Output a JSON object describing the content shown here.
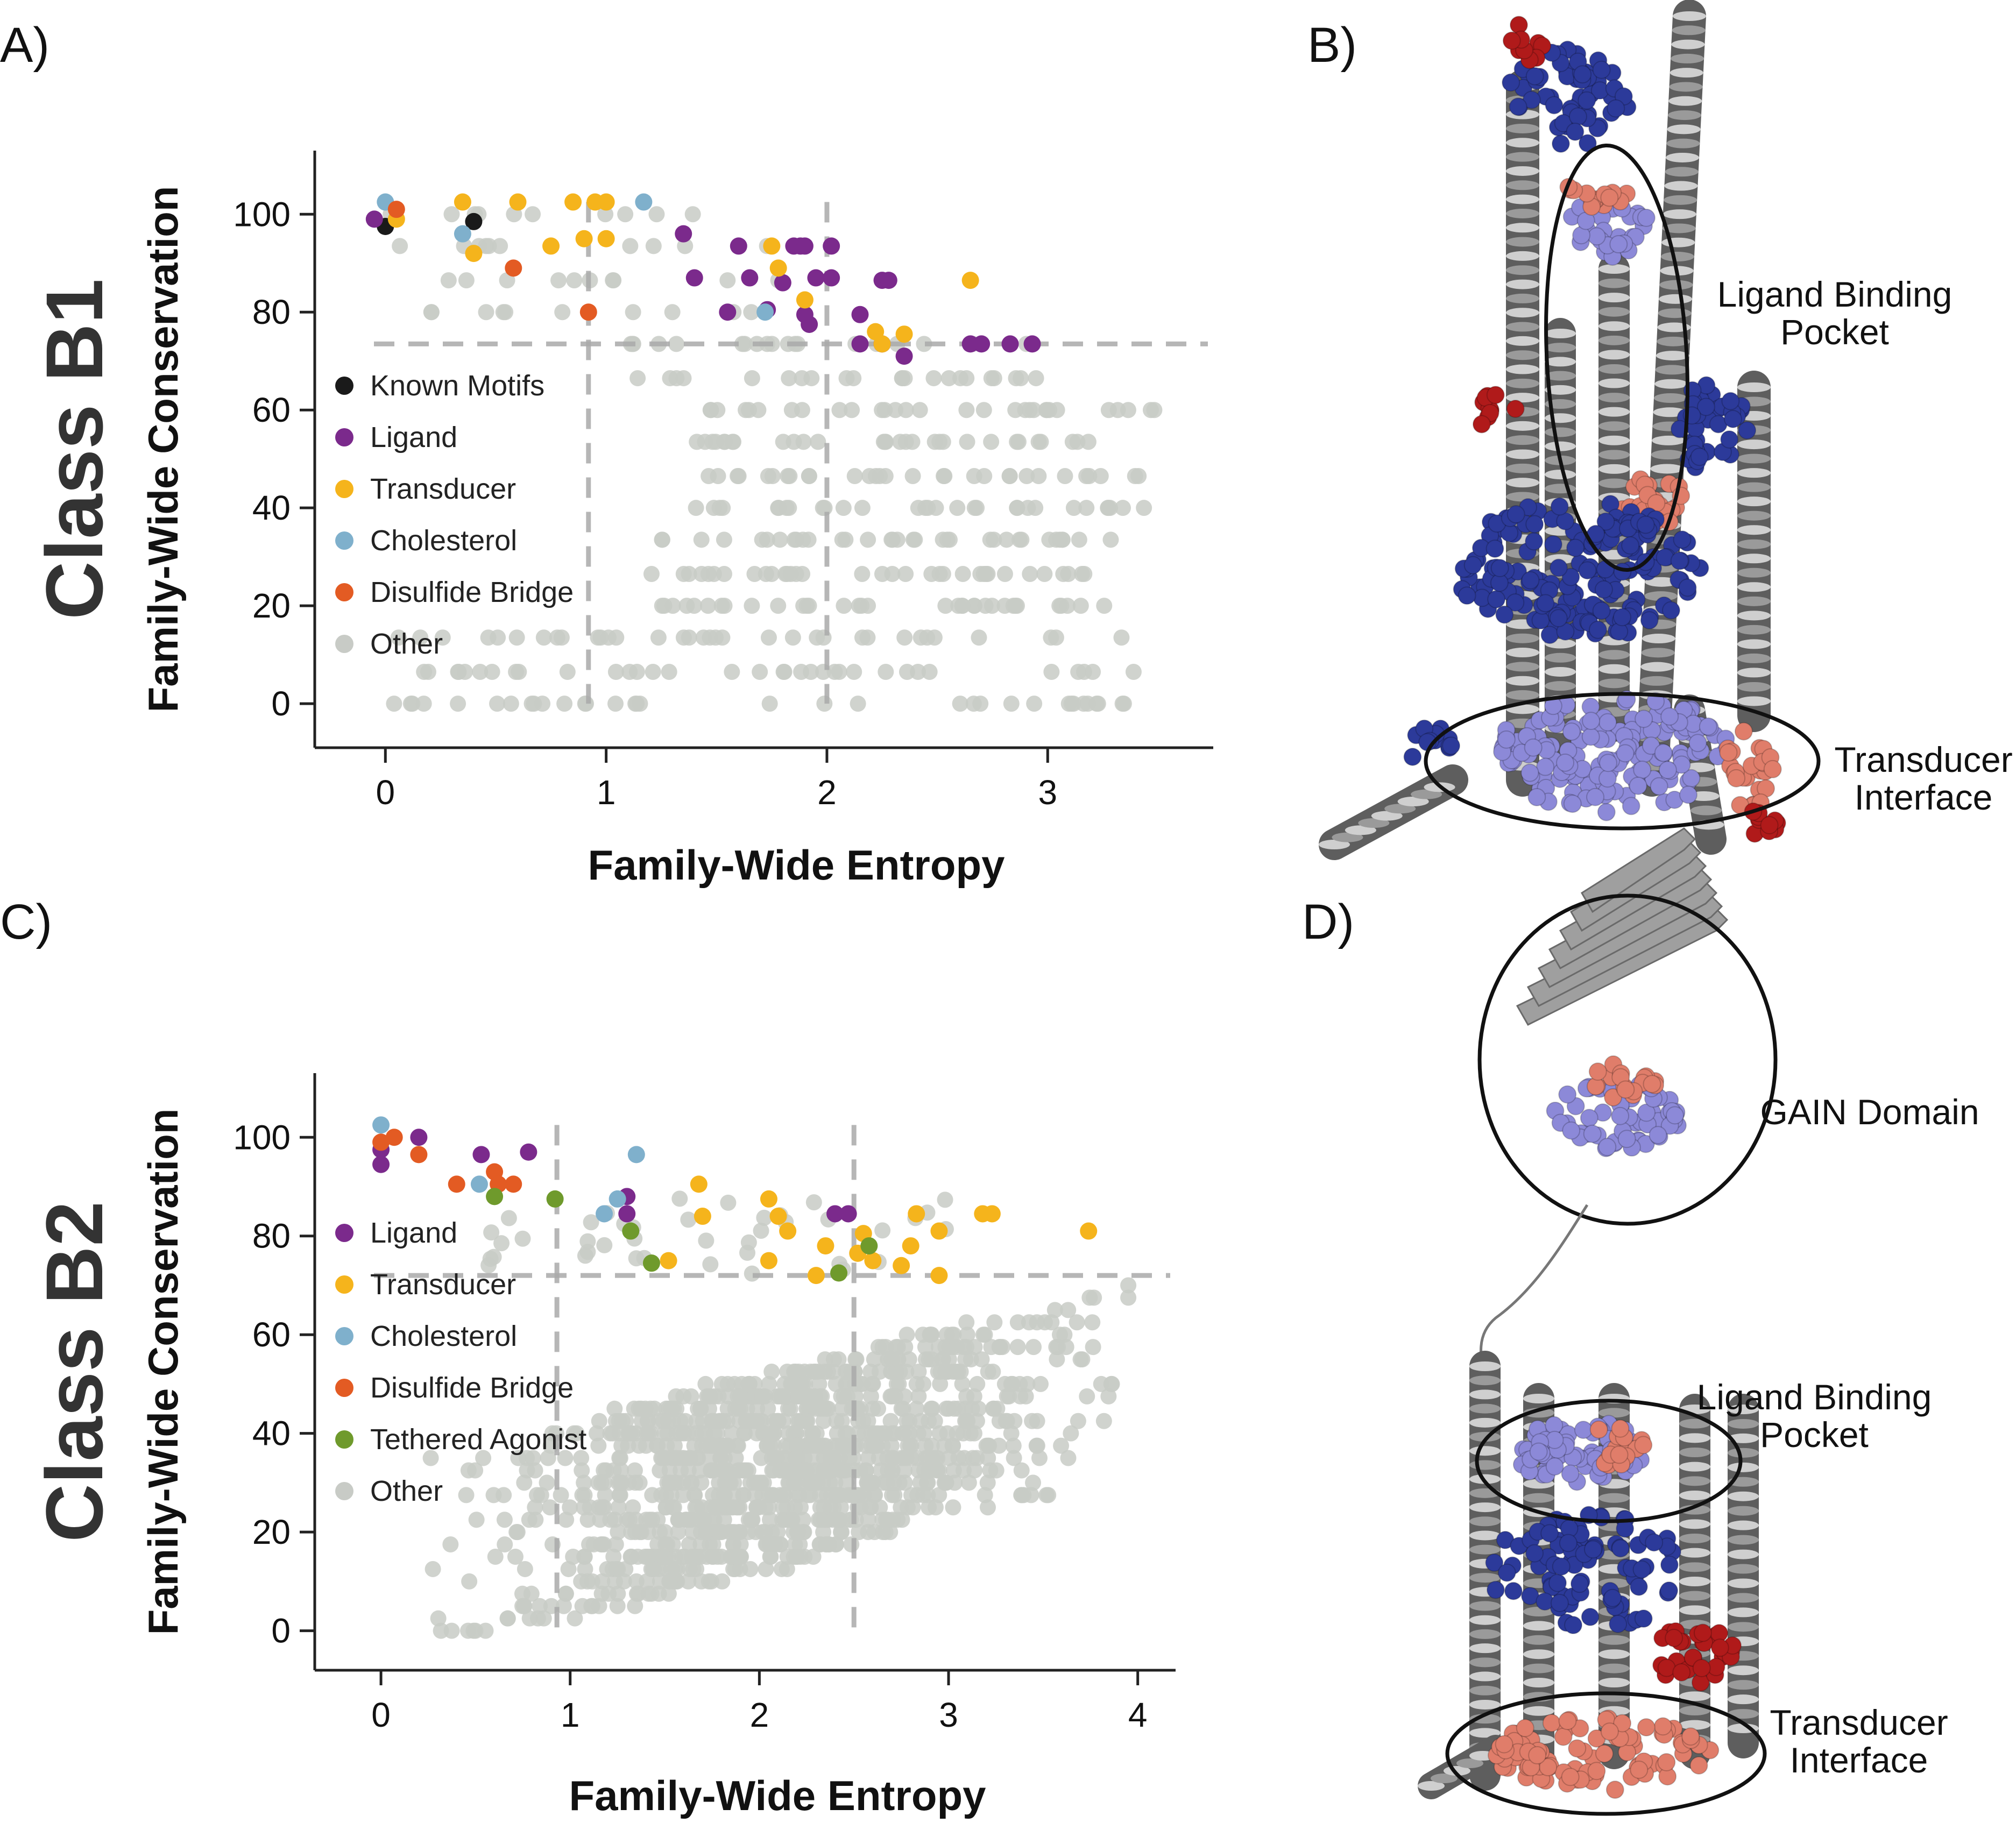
{
  "panels": {
    "A": "A)",
    "B": "B)",
    "C": "C)",
    "D": "D)"
  },
  "structure_labels": {
    "b_ligand_line1": "Ligand Binding",
    "b_ligand_line2": "Pocket",
    "b_trans_line1": "Transducer",
    "b_trans_line2": "Interface",
    "d_gain": "GAIN Domain",
    "d_ligand_line1": "Ligand Binding",
    "d_ligand_line2": "Pocket",
    "d_trans_line1": "Transducer",
    "d_trans_line2": "Interface"
  },
  "colors": {
    "Known Motifs": "#1a1a1a",
    "Ligand": "#7b2a8c",
    "Transducer": "#f5b41c",
    "Cholesterol": "#7fb0cc",
    "Disulfide Bridge": "#e35b23",
    "Tethered Agonist": "#6f9a2c",
    "Other": "#c8cbc6",
    "guide": "#a9a9a9",
    "helix": "#7a7a7a",
    "sphere_blue": "#2c3a9a",
    "sphere_red": "#b01a1a",
    "sphere_salmon": "#e07d6a",
    "sphere_periwinkle": "#8c89d8"
  },
  "chart_data": [
    {
      "type": "scatter",
      "row_label": "Class B1",
      "xlabel": "Family-Wide Entropy",
      "ylabel": "Family-Wide Conservation",
      "xlim": [
        -0.32,
        3.75
      ],
      "ylim": [
        -9,
        113
      ],
      "xticks": [
        "0",
        "1",
        "2",
        "3"
      ],
      "yticks": [
        "0",
        "20",
        "40",
        "60",
        "80",
        "100"
      ],
      "guides": {
        "vertical_x": [
          0.92,
          2.0
        ],
        "horizontal_y": 73.5
      },
      "legend": {
        "placement": "left",
        "entries": [
          "Known Motifs",
          "Ligand",
          "Transducer",
          "Cholesterol",
          "Disulfide Bridge",
          "Other"
        ]
      },
      "series": [
        {
          "name": "Known Motifs",
          "points": [
            [
              0.0,
              97.5
            ],
            [
              0.4,
              98.5
            ]
          ]
        },
        {
          "name": "Ligand",
          "points": [
            [
              -0.05,
              99
            ],
            [
              1.35,
              96
            ],
            [
              1.6,
              93.5
            ],
            [
              1.85,
              93.5
            ],
            [
              1.88,
              93.5
            ],
            [
              1.9,
              93.5
            ],
            [
              2.02,
              93.5
            ],
            [
              1.4,
              87
            ],
            [
              1.65,
              87
            ],
            [
              1.8,
              86
            ],
            [
              1.95,
              87
            ],
            [
              2.02,
              87
            ],
            [
              2.25,
              86.5
            ],
            [
              2.28,
              86.5
            ],
            [
              1.55,
              80
            ],
            [
              1.73,
              80.5
            ],
            [
              1.9,
              79.5
            ],
            [
              1.92,
              77.5
            ],
            [
              2.15,
              79.5
            ],
            [
              2.15,
              73.5
            ],
            [
              2.25,
              73.5
            ],
            [
              2.35,
              71
            ],
            [
              2.65,
              73.5
            ],
            [
              2.7,
              73.5
            ],
            [
              2.83,
              73.5
            ],
            [
              2.93,
              73.5
            ]
          ]
        },
        {
          "name": "Transducer",
          "points": [
            [
              0.05,
              99
            ],
            [
              0.35,
              102.5
            ],
            [
              0.6,
              102.5
            ],
            [
              0.85,
              102.5
            ],
            [
              0.95,
              102.5
            ],
            [
              1.0,
              102.5
            ],
            [
              0.75,
              93.5
            ],
            [
              0.9,
              95
            ],
            [
              1.0,
              95
            ],
            [
              0.4,
              92
            ],
            [
              1.75,
              93.5
            ],
            [
              1.78,
              89
            ],
            [
              1.9,
              82.5
            ],
            [
              2.22,
              76
            ],
            [
              2.35,
              75.5
            ],
            [
              2.25,
              73.5
            ],
            [
              2.65,
              86.5
            ]
          ]
        },
        {
          "name": "Cholesterol",
          "points": [
            [
              0.0,
              102.5
            ],
            [
              0.35,
              96
            ],
            [
              1.17,
              102.5
            ],
            [
              1.72,
              80
            ]
          ]
        },
        {
          "name": "Disulfide Bridge",
          "points": [
            [
              0.05,
              101
            ],
            [
              0.58,
              89
            ],
            [
              0.92,
              80
            ]
          ]
        },
        {
          "name": "Other",
          "points": "see other_points_generation"
        }
      ]
    },
    {
      "type": "scatter",
      "row_label": "Class B2",
      "xlabel": "Family-Wide Entropy",
      "ylabel": "Family-Wide Conservation",
      "xlim": [
        -0.35,
        4.2
      ],
      "ylim": [
        -8,
        113
      ],
      "xticks": [
        "0",
        "1",
        "2",
        "3",
        "4"
      ],
      "yticks": [
        "0",
        "20",
        "40",
        "60",
        "80",
        "100"
      ],
      "guides": {
        "vertical_x": [
          0.93,
          2.5
        ],
        "horizontal_y": 72
      },
      "legend": {
        "placement": "left",
        "entries": [
          "Ligand",
          "Transducer",
          "Cholesterol",
          "Disulfide Bridge",
          "Tethered Agonist",
          "Other"
        ]
      },
      "series": [
        {
          "name": "Ligand",
          "points": [
            [
              0.0,
              97.5
            ],
            [
              0.0,
              94.5
            ],
            [
              0.2,
              100
            ],
            [
              0.53,
              96.5
            ],
            [
              0.78,
              97
            ],
            [
              1.3,
              88
            ],
            [
              1.3,
              84.5
            ],
            [
              2.4,
              84.5
            ],
            [
              2.47,
              84.5
            ]
          ]
        },
        {
          "name": "Transducer",
          "points": [
            [
              1.68,
              90.5
            ],
            [
              1.7,
              84
            ],
            [
              2.05,
              87.5
            ],
            [
              2.1,
              84
            ],
            [
              2.15,
              81
            ],
            [
              2.05,
              75
            ],
            [
              2.35,
              78
            ],
            [
              2.3,
              72
            ],
            [
              2.55,
              80.5
            ],
            [
              2.52,
              76.5
            ],
            [
              2.83,
              84.5
            ],
            [
              2.95,
              81
            ],
            [
              3.18,
              84.5
            ],
            [
              3.23,
              84.5
            ],
            [
              2.6,
              75
            ],
            [
              2.8,
              78
            ],
            [
              2.75,
              74
            ],
            [
              2.95,
              72
            ],
            [
              1.52,
              75
            ],
            [
              3.74,
              81
            ]
          ]
        },
        {
          "name": "Cholesterol",
          "points": [
            [
              0.0,
              102.5
            ],
            [
              0.52,
              90.5
            ],
            [
              1.18,
              84.5
            ],
            [
              1.25,
              87.5
            ],
            [
              1.35,
              96.5
            ]
          ]
        },
        {
          "name": "Disulfide Bridge",
          "points": [
            [
              0.0,
              99
            ],
            [
              0.07,
              100
            ],
            [
              0.2,
              96.5
            ],
            [
              0.4,
              90.5
            ],
            [
              0.6,
              93
            ],
            [
              0.7,
              90.5
            ],
            [
              0.62,
              90.5
            ]
          ]
        },
        {
          "name": "Tethered Agonist",
          "points": [
            [
              0.6,
              88
            ],
            [
              0.92,
              87.5
            ],
            [
              1.32,
              81
            ],
            [
              1.43,
              74.5
            ],
            [
              2.58,
              78
            ],
            [
              2.42,
              72.5
            ]
          ]
        },
        {
          "name": "Other",
          "points": "see other_points_generation"
        }
      ]
    }
  ],
  "other_points_generation": "dense grey cloud; B1 spans entropy 0–3.5, conservation 0–100 (banded rows); B2 spans entropy 0–3.95, conservation 0–100 with density peak around entropy 1–3, conservation 10–40"
}
